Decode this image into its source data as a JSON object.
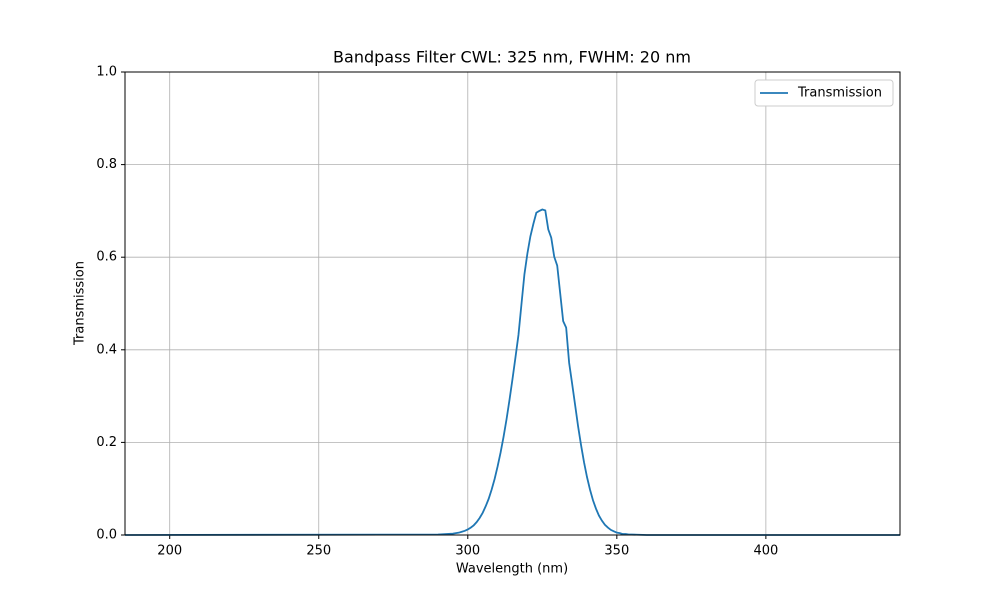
{
  "chart_data": {
    "type": "line",
    "title": "Bandpass Filter CWL: 325 nm, FWHM: 20 nm",
    "xlabel": "Wavelength (nm)",
    "ylabel": "Transmission",
    "xlim": [
      185,
      445
    ],
    "ylim": [
      0,
      1
    ],
    "xticks": [
      200,
      250,
      300,
      350,
      400
    ],
    "yticks": [
      {
        "value": 0,
        "label": "0.0"
      },
      {
        "value": 0.2,
        "label": "0.2"
      },
      {
        "value": 0.4,
        "label": "0.4"
      },
      {
        "value": 0.6,
        "label": "0.6"
      },
      {
        "value": 0.8,
        "label": "0.8"
      },
      {
        "value": 1,
        "label": "1.0"
      }
    ],
    "grid": true,
    "legend": "upper right",
    "x": [
      185,
      290,
      295,
      296,
      297,
      298,
      299,
      300,
      301,
      302,
      303,
      304,
      305,
      306,
      307,
      308,
      309,
      310,
      311,
      312,
      313,
      314,
      315,
      316,
      317,
      318,
      319,
      320,
      321,
      322,
      323,
      324,
      325,
      326,
      327,
      328,
      329,
      330,
      331,
      332,
      333,
      334,
      335,
      336,
      337,
      338,
      339,
      340,
      341,
      342,
      343,
      344,
      345,
      346,
      347,
      348,
      349,
      350,
      351,
      352,
      353,
      354,
      355,
      360,
      445
    ],
    "series": [
      {
        "name": "Transmission",
        "color": "#1f77b4",
        "values": [
          0,
          0.001,
          0.003,
          0.004,
          0.005,
          0.007,
          0.009,
          0.012,
          0.016,
          0.021,
          0.028,
          0.037,
          0.048,
          0.062,
          0.078,
          0.098,
          0.121,
          0.148,
          0.178,
          0.212,
          0.25,
          0.292,
          0.337,
          0.384,
          0.432,
          0.498,
          0.563,
          0.608,
          0.645,
          0.672,
          0.696,
          0.7,
          0.703,
          0.701,
          0.66,
          0.642,
          0.601,
          0.582,
          0.522,
          0.462,
          0.448,
          0.372,
          0.327,
          0.281,
          0.235,
          0.194,
          0.157,
          0.125,
          0.098,
          0.075,
          0.057,
          0.042,
          0.031,
          0.022,
          0.016,
          0.011,
          0.008,
          0.005,
          0.004,
          0.002,
          0.002,
          0.001,
          0.001,
          0,
          0
        ]
      }
    ]
  }
}
